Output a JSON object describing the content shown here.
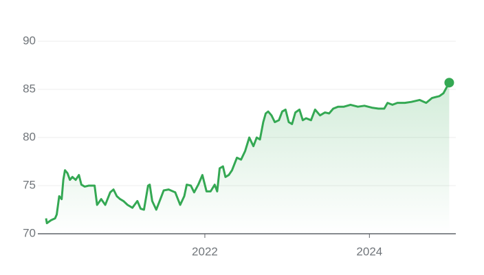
{
  "chart_data": {
    "type": "line",
    "color": "#34a853",
    "x": [
      2020.07,
      2020.08,
      2020.13,
      2020.18,
      2020.2,
      2020.23,
      2020.26,
      2020.28,
      2020.3,
      2020.33,
      2020.36,
      2020.39,
      2020.43,
      2020.47,
      2020.5,
      2020.54,
      2020.59,
      2020.66,
      2020.69,
      2020.74,
      2020.79,
      2020.85,
      2020.89,
      2020.93,
      2020.97,
      2021.01,
      2021.06,
      2021.12,
      2021.18,
      2021.22,
      2021.26,
      2021.31,
      2021.33,
      2021.36,
      2021.41,
      2021.46,
      2021.5,
      2021.56,
      2021.64,
      2021.7,
      2021.75,
      2021.78,
      2021.83,
      2021.87,
      2021.92,
      2021.97,
      2022.02,
      2022.07,
      2022.12,
      2022.15,
      2022.18,
      2022.22,
      2022.25,
      2022.29,
      2022.33,
      2022.39,
      2022.44,
      2022.49,
      2022.54,
      2022.59,
      2022.63,
      2022.67,
      2022.71,
      2022.74,
      2022.77,
      2022.81,
      2022.85,
      2022.9,
      2022.94,
      2022.98,
      2023.02,
      2023.06,
      2023.1,
      2023.15,
      2023.19,
      2023.23,
      2023.29,
      2023.34,
      2023.4,
      2023.46,
      2023.51,
      2023.56,
      2023.62,
      2023.69,
      2023.77,
      2023.86,
      2023.94,
      2024.03,
      2024.11,
      2024.18,
      2024.22,
      2024.28,
      2024.34,
      2024.43,
      2024.51,
      2024.61,
      2024.69,
      2024.76,
      2024.85,
      2024.9,
      2024.97
    ],
    "values": [
      71.6,
      71.1,
      71.4,
      71.6,
      72.0,
      73.9,
      73.6,
      75.6,
      76.6,
      76.3,
      75.6,
      75.9,
      75.6,
      76.1,
      75.1,
      74.9,
      75.0,
      75.0,
      73.0,
      73.6,
      73.0,
      74.3,
      74.6,
      73.9,
      73.6,
      73.4,
      73.0,
      72.7,
      73.4,
      72.6,
      72.5,
      75.0,
      75.1,
      73.4,
      72.5,
      73.6,
      74.5,
      74.6,
      74.3,
      73.0,
      73.9,
      75.1,
      75.0,
      74.3,
      75.1,
      76.1,
      74.4,
      74.4,
      75.1,
      74.4,
      76.8,
      77.0,
      75.9,
      76.1,
      76.6,
      77.9,
      77.7,
      78.6,
      80.0,
      79.1,
      80.0,
      79.8,
      81.6,
      82.5,
      82.7,
      82.3,
      81.6,
      81.8,
      82.7,
      82.9,
      81.6,
      81.4,
      82.6,
      82.9,
      81.8,
      82.0,
      81.8,
      82.9,
      82.3,
      82.6,
      82.5,
      83.0,
      83.2,
      83.2,
      83.4,
      83.2,
      83.3,
      83.1,
      83.0,
      83.0,
      83.6,
      83.4,
      83.6,
      83.6,
      83.7,
      83.9,
      83.6,
      84.1,
      84.3,
      84.6,
      85.7
    ],
    "xlim": [
      2019.97,
      2025.05
    ],
    "xticks": [
      2022,
      2024
    ],
    "ylim": [
      70,
      90
    ],
    "yticks": [
      70,
      75,
      80,
      85,
      90
    ],
    "grid": true
  }
}
